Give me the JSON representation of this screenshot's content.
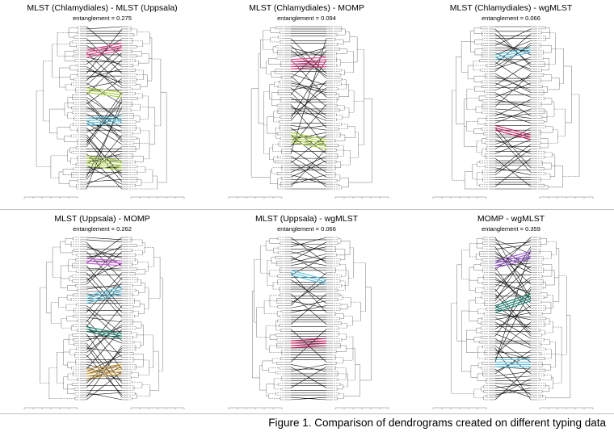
{
  "panels": [
    {
      "title": "MLST (Chlamydiales) - MLST (Uppsala)",
      "entanglement": "entanglement = 0.275",
      "colors": [
        "#e8428c",
        "#a6cf3c",
        "#5bc0de",
        "#a6cf3c"
      ]
    },
    {
      "title": "MLST (Chlamydiales) - MOMP",
      "entanglement": "entanglement = 0.094",
      "colors": [
        "#e8428c",
        "#a6cf3c"
      ]
    },
    {
      "title": "MLST (Chlamydiales) - wgMLST",
      "entanglement": "entanglement = 0.066",
      "colors": [
        "#5bc0de",
        "#c2185b"
      ]
    },
    {
      "title": "MLST (Uppsala) - MOMP",
      "entanglement": "entanglement = 0.262",
      "colors": [
        "#c252d6",
        "#5bc0de",
        "#0f7b6c",
        "#d9a441"
      ]
    },
    {
      "title": "MLST (Uppsala) - wgMLST",
      "entanglement": "entanglement = 0.066",
      "colors": [
        "#5bc0de",
        "#c2185b"
      ]
    },
    {
      "title": "MOMP - wgMLST",
      "entanglement": "entanglement = 0.359",
      "colors": [
        "#9b59d6",
        "#0f7b6c",
        "#5bc0de"
      ]
    }
  ],
  "caption": "Figure 1.  Comparison of dendrograms created on different typing data"
}
